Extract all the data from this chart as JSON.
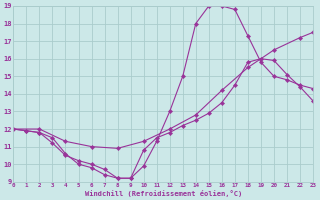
{
  "xlabel": "Windchill (Refroidissement éolien,°C)",
  "bg_color": "#cce8e8",
  "grid_color": "#aacccc",
  "line_color": "#993399",
  "xmin": 0,
  "xmax": 23,
  "ymin": 9,
  "ymax": 19,
  "line1_x": [
    0,
    1,
    2,
    3,
    4,
    5,
    6,
    7,
    8,
    9,
    10,
    11,
    12,
    13,
    14,
    15,
    16,
    17,
    18,
    19,
    20,
    21,
    22,
    23
  ],
  "line1_y": [
    12.0,
    11.9,
    11.8,
    11.5,
    10.6,
    10.0,
    9.8,
    9.4,
    9.2,
    9.2,
    9.9,
    11.3,
    13.0,
    15.0,
    18.0,
    19.0,
    19.0,
    18.8,
    17.3,
    15.8,
    15.0,
    14.8,
    14.5,
    14.3
  ],
  "line2_x": [
    0,
    1,
    2,
    3,
    4,
    5,
    6,
    7,
    8,
    9,
    10,
    11,
    12,
    13,
    14,
    15,
    16,
    17,
    18,
    19,
    20,
    21,
    22,
    23
  ],
  "line2_y": [
    12.0,
    11.9,
    11.8,
    11.2,
    10.5,
    10.2,
    10.0,
    9.7,
    9.2,
    9.2,
    10.8,
    11.5,
    11.8,
    12.2,
    12.5,
    12.9,
    13.5,
    14.5,
    15.8,
    16.0,
    15.9,
    15.1,
    14.4,
    13.6
  ],
  "line3_x": [
    0,
    2,
    4,
    6,
    8,
    10,
    12,
    14,
    16,
    18,
    20,
    22,
    23
  ],
  "line3_y": [
    12.0,
    12.0,
    11.3,
    11.0,
    10.9,
    11.3,
    12.0,
    12.8,
    14.2,
    15.5,
    16.5,
    17.2,
    17.5
  ]
}
